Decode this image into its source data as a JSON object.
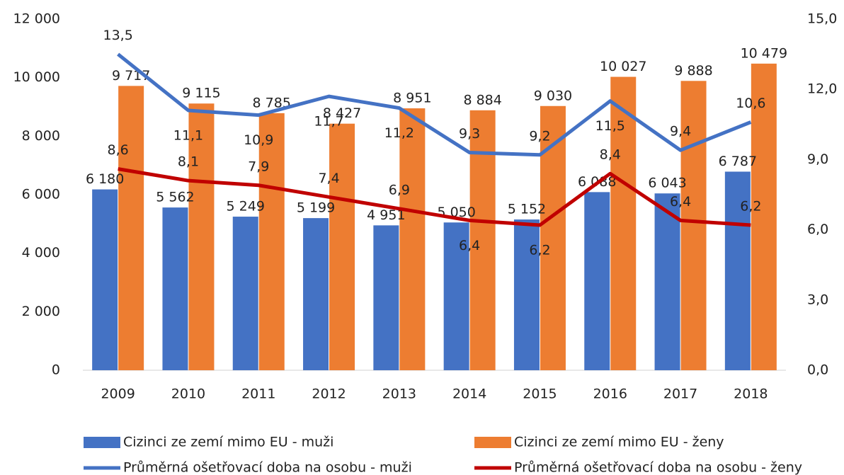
{
  "chart_data": {
    "type": "bar",
    "categories": [
      "2009",
      "2010",
      "2011",
      "2012",
      "2013",
      "2014",
      "2015",
      "2016",
      "2017",
      "2018"
    ],
    "series": [
      {
        "name": "Cizinci ze zemí mimo EU - muži",
        "type": "bar",
        "color": "#4472c4",
        "values": [
          6180,
          5562,
          5249,
          5199,
          4951,
          5050,
          5152,
          6088,
          6043,
          6787
        ],
        "value_labels": [
          "6 180",
          "5 562",
          "5 249",
          "5 199",
          "4 951",
          "5 050",
          "5 152",
          "6 088",
          "6 043",
          "6 787"
        ]
      },
      {
        "name": "Cizinci ze zemí mimo EU - ženy",
        "type": "bar",
        "color": "#ed7d31",
        "values": [
          9717,
          9115,
          8785,
          8427,
          8951,
          8884,
          9030,
          10027,
          9888,
          10479
        ],
        "value_labels": [
          "9 717",
          "9 115",
          "8 785",
          "8 427",
          "8 951",
          "8 884",
          "9 030",
          "10 027",
          "9 888",
          "10 479"
        ]
      },
      {
        "name": "Průměrná ošetřovací doba na osobu - muži",
        "type": "line",
        "axis": "y2",
        "color": "#4472c4",
        "values": [
          13.5,
          11.1,
          10.9,
          11.7,
          11.2,
          9.3,
          9.2,
          11.5,
          9.4,
          10.6
        ],
        "value_labels": [
          "13,5",
          "11,1",
          "10,9",
          "11,7",
          "11,2",
          "9,3",
          "9,2",
          "11,5",
          "9,4",
          "10,6"
        ]
      },
      {
        "name": "Průměrná ošetřovací doba na osobu - ženy",
        "type": "line",
        "axis": "y2",
        "color": "#c00000",
        "values": [
          8.6,
          8.1,
          7.9,
          7.4,
          6.9,
          6.4,
          6.2,
          8.4,
          6.4,
          6.2
        ],
        "value_labels": [
          "8,6",
          "8,1",
          "7,9",
          "7,4",
          "6,9",
          "6,4",
          "6,2",
          "8,4",
          "6,4",
          "6,2"
        ]
      }
    ],
    "ylim": [
      0,
      12000
    ],
    "yticks": [
      0,
      {
        "value": 2000,
        "label": "2 000"
      },
      {
        "value": 4000,
        "label": "4 000"
      },
      {
        "value": 6000,
        "label": "6 000"
      },
      {
        "value": 8000,
        "label": "8 000"
      },
      {
        "value": 10000,
        "label": "10 000"
      },
      {
        "value": 12000,
        "label": "12 000"
      }
    ],
    "y2lim": [
      0,
      15
    ],
    "y2ticks": [
      {
        "value": 0,
        "label": "0,0"
      },
      {
        "value": 3,
        "label": "3,0"
      },
      {
        "value": 6,
        "label": "6,0"
      },
      {
        "value": 9,
        "label": "9,0"
      },
      {
        "value": 12,
        "label": "12,0"
      },
      {
        "value": 15,
        "label": "15,0"
      }
    ],
    "legend": "bottom"
  }
}
